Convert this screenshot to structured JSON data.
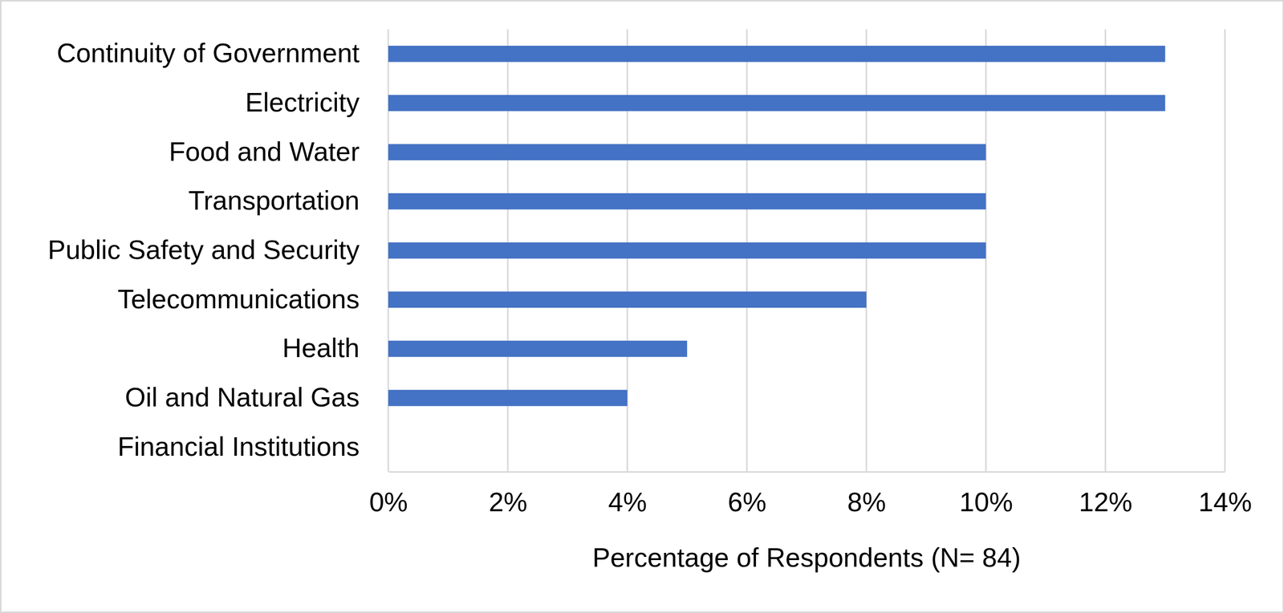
{
  "chart_data": {
    "type": "bar",
    "orientation": "horizontal",
    "categories": [
      "Continuity of Government",
      "Electricity",
      "Food and Water",
      "Transportation",
      "Public Safety and Security",
      "Telecommunications",
      "Health",
      "Oil and Natural Gas",
      "Financial Institutions"
    ],
    "values": [
      13,
      13,
      10,
      10,
      10,
      8,
      5,
      4,
      0
    ],
    "color": "#4472c4",
    "x_label": "Percentage of Respondents (N= 84)",
    "xlim": [
      0,
      14
    ],
    "xticks": [
      {
        "value": 0,
        "label": "0%"
      },
      {
        "value": 2,
        "label": "2%"
      },
      {
        "value": 4,
        "label": "4%"
      },
      {
        "value": 6,
        "label": "6%"
      },
      {
        "value": 8,
        "label": "8%"
      },
      {
        "value": 10,
        "label": "10%"
      },
      {
        "value": 12,
        "label": "12%"
      },
      {
        "value": 14,
        "label": "14%"
      }
    ],
    "grid": true
  }
}
